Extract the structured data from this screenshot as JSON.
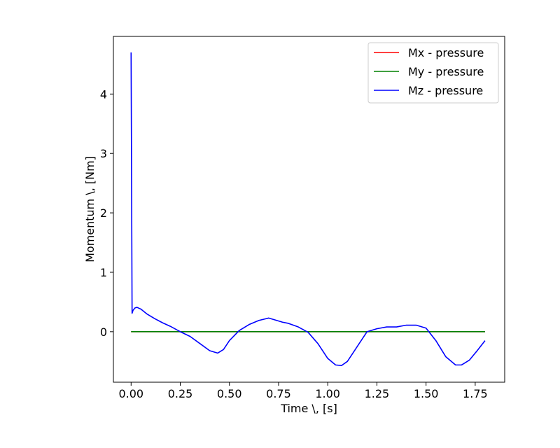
{
  "chart_data": {
    "type": "line",
    "title": "",
    "xlabel": "Time \\, [s]",
    "ylabel": "Momentum \\, [Nm]",
    "xlim": [
      -0.09,
      1.9
    ],
    "ylim": [
      -0.85,
      4.97
    ],
    "xticks": [
      0.0,
      0.25,
      0.5,
      0.75,
      1.0,
      1.25,
      1.5,
      1.75
    ],
    "xtick_labels": [
      "0.00",
      "0.25",
      "0.50",
      "0.75",
      "1.00",
      "1.25",
      "1.50",
      "1.75"
    ],
    "yticks": [
      0,
      1,
      2,
      3,
      4
    ],
    "ytick_labels": [
      "0",
      "1",
      "2",
      "3",
      "4"
    ],
    "grid": false,
    "legend_position": "top-right",
    "series": [
      {
        "name": "Mx - pressure",
        "color": "#ff0000",
        "x": [
          0.0,
          0.3,
          0.6,
          0.9,
          1.2,
          1.5,
          1.8
        ],
        "y": [
          0,
          0,
          0,
          0,
          0,
          0,
          0
        ]
      },
      {
        "name": "My - pressure",
        "color": "#008000",
        "x": [
          0.0,
          0.3,
          0.6,
          0.9,
          1.2,
          1.5,
          1.8
        ],
        "y": [
          0,
          0,
          0,
          0,
          0,
          0,
          0
        ]
      },
      {
        "name": "Mz - pressure",
        "color": "#0000ff",
        "x": [
          0.0,
          0.005,
          0.01,
          0.02,
          0.03,
          0.05,
          0.08,
          0.12,
          0.16,
          0.2,
          0.25,
          0.3,
          0.35,
          0.4,
          0.44,
          0.47,
          0.5,
          0.55,
          0.6,
          0.65,
          0.7,
          0.73,
          0.77,
          0.8,
          0.85,
          0.9,
          0.95,
          1.0,
          1.04,
          1.07,
          1.1,
          1.15,
          1.2,
          1.25,
          1.3,
          1.35,
          1.4,
          1.45,
          1.5,
          1.55,
          1.6,
          1.65,
          1.68,
          1.72,
          1.76,
          1.8
        ],
        "y": [
          4.7,
          0.31,
          0.36,
          0.4,
          0.41,
          0.38,
          0.3,
          0.22,
          0.15,
          0.09,
          0.0,
          -0.08,
          -0.2,
          -0.32,
          -0.36,
          -0.3,
          -0.15,
          0.02,
          0.12,
          0.19,
          0.23,
          0.2,
          0.16,
          0.14,
          0.08,
          -0.01,
          -0.2,
          -0.45,
          -0.56,
          -0.57,
          -0.5,
          -0.25,
          0.0,
          0.05,
          0.08,
          0.08,
          0.11,
          0.11,
          0.06,
          -0.15,
          -0.42,
          -0.56,
          -0.56,
          -0.48,
          -0.32,
          -0.15
        ]
      }
    ]
  }
}
